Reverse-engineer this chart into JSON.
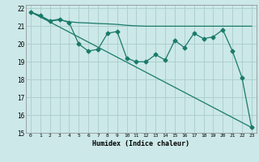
{
  "title": "",
  "xlabel": "Humidex (Indice chaleur)",
  "bg_color": "#cce8e8",
  "grid_color": "#aacccc",
  "line_color": "#1a7a6a",
  "xlim": [
    -0.5,
    23.5
  ],
  "ylim": [
    15,
    22.2
  ],
  "yticks": [
    15,
    16,
    17,
    18,
    19,
    20,
    21,
    22
  ],
  "xticks": [
    0,
    1,
    2,
    3,
    4,
    5,
    6,
    7,
    8,
    9,
    10,
    11,
    12,
    13,
    14,
    15,
    16,
    17,
    18,
    19,
    20,
    21,
    22,
    23
  ],
  "line1_x": [
    0,
    1,
    2,
    3,
    4,
    5,
    6,
    7,
    8,
    9,
    10,
    11,
    12,
    13,
    14,
    15,
    16,
    17,
    18,
    19,
    20,
    21,
    22,
    23
  ],
  "line1_y": [
    21.8,
    21.6,
    21.3,
    21.4,
    21.2,
    20.0,
    19.6,
    19.7,
    20.6,
    20.7,
    19.2,
    19.0,
    19.0,
    19.4,
    19.1,
    20.2,
    19.8,
    20.6,
    20.3,
    20.4,
    20.8,
    19.6,
    18.1,
    15.3
  ],
  "line2_x": [
    0,
    1,
    2,
    3,
    4,
    5,
    6,
    7,
    8,
    9,
    10,
    11,
    12,
    13,
    14,
    15,
    16,
    17,
    18,
    19,
    20,
    21,
    22,
    23
  ],
  "line2_y": [
    21.8,
    21.55,
    21.3,
    21.35,
    21.25,
    21.2,
    21.18,
    21.15,
    21.13,
    21.1,
    21.05,
    21.02,
    21.0,
    21.0,
    21.0,
    21.0,
    21.0,
    21.0,
    21.0,
    21.0,
    21.0,
    21.0,
    21.0,
    21.0
  ],
  "line3_x": [
    0,
    23
  ],
  "line3_y": [
    21.8,
    15.3
  ],
  "marker_size": 2.5,
  "linewidth": 0.9
}
